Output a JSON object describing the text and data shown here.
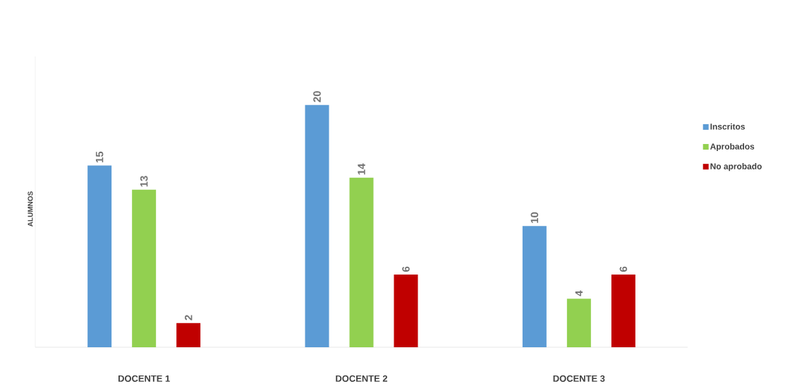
{
  "chart_data": {
    "type": "bar",
    "ylabel": "ALUMNOS",
    "categories": [
      "DOCENTE 1",
      "DOCENTE 2",
      "DOCENTE 3"
    ],
    "series": [
      {
        "name": "Inscritos",
        "color": "#5b9bd5",
        "values": [
          15,
          20,
          10
        ]
      },
      {
        "name": "Aprobados",
        "color": "#92d050",
        "values": [
          13,
          14,
          4
        ]
      },
      {
        "name": "No aprobado",
        "color": "#c00000",
        "values": [
          2,
          6,
          6
        ]
      }
    ],
    "data_labels": true,
    "legend": "right",
    "grid": false
  }
}
